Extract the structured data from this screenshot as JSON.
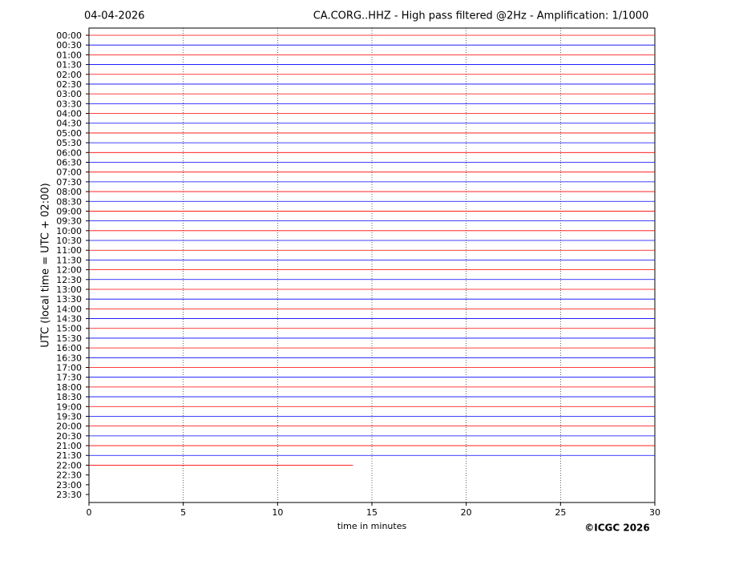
{
  "chart_data": {
    "type": "helicorder",
    "date": "04-04-2026",
    "title": "CA.CORG..HHZ - High pass filtered @2Hz - Amplification: 1/1000",
    "y_label": "UTC (local time = UTC + 02:00)",
    "x_label": "time in minutes",
    "copyright": "©ICGC 2026",
    "categories": [
      "00:00",
      "00:30",
      "01:00",
      "01:30",
      "02:00",
      "02:30",
      "03:00",
      "03:30",
      "04:00",
      "04:30",
      "05:00",
      "05:30",
      "06:00",
      "06:30",
      "07:00",
      "07:30",
      "08:00",
      "08:30",
      "09:00",
      "09:30",
      "10:00",
      "10:30",
      "11:00",
      "11:30",
      "12:00",
      "12:30",
      "13:00",
      "13:30",
      "14:00",
      "14:30",
      "15:00",
      "15:30",
      "16:00",
      "16:30",
      "17:00",
      "17:30",
      "18:00",
      "18:30",
      "19:00",
      "19:30",
      "20:00",
      "20:30",
      "21:00",
      "21:30",
      "22:00",
      "22:30",
      "23:00",
      "23:30"
    ],
    "values": [
      30,
      30,
      30,
      30,
      30,
      30,
      30,
      30,
      30,
      30,
      30,
      30,
      30,
      30,
      30,
      30,
      30,
      30,
      30,
      30,
      30,
      30,
      30,
      30,
      30,
      30,
      30,
      30,
      30,
      30,
      30,
      30,
      30,
      30,
      30,
      30,
      30,
      30,
      30,
      30,
      30,
      30,
      30,
      30,
      14,
      null,
      null,
      null
    ],
    "colors": [
      "#ff0000",
      "#0000ff"
    ],
    "xlim": [
      0,
      30
    ],
    "xticks": [
      0,
      5,
      10,
      15,
      20,
      25,
      30
    ],
    "grid": true
  }
}
